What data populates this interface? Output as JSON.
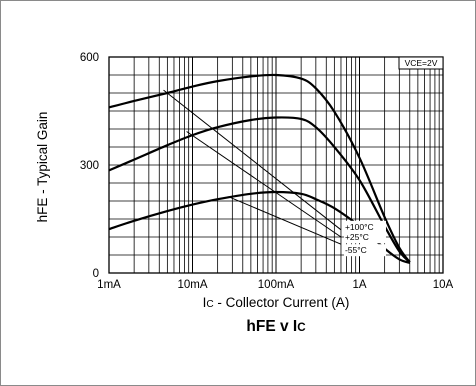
{
  "chart_data": {
    "type": "line",
    "title": "hFE v IC",
    "title_parts": [
      "hFE v I",
      "C"
    ],
    "xlabel": "IC - Collector Current (A)",
    "xlabel_parts": [
      "I",
      "C",
      " - Collector Current (A)"
    ],
    "ylabel": "hFE - Typical Gain",
    "xscale": "log",
    "xlim": [
      0.001,
      10
    ],
    "ylim": [
      0,
      600
    ],
    "x_ticks": [
      {
        "value": 0.001,
        "label": "1mA"
      },
      {
        "value": 0.01,
        "label": "10mA"
      },
      {
        "value": 0.1,
        "label": "100mA"
      },
      {
        "value": 1,
        "label": "1A"
      },
      {
        "value": 10,
        "label": "10A"
      }
    ],
    "y_ticks": [
      {
        "value": 0,
        "label": "0"
      },
      {
        "value": 300,
        "label": "300"
      },
      {
        "value": 600,
        "label": "600"
      }
    ],
    "grid": true,
    "condition_label": "VCE=2V",
    "series": [
      {
        "name": "+100°C",
        "x": [
          0.001,
          0.002,
          0.005,
          0.01,
          0.02,
          0.05,
          0.1,
          0.2,
          0.3,
          0.5,
          1,
          2,
          3,
          4
        ],
        "y": [
          460,
          478,
          500,
          518,
          533,
          546,
          550,
          540,
          513,
          448,
          320,
          155,
          70,
          30
        ]
      },
      {
        "name": "+25°C",
        "x": [
          0.001,
          0.002,
          0.005,
          0.01,
          0.02,
          0.05,
          0.1,
          0.2,
          0.3,
          0.5,
          1,
          2,
          3,
          4
        ],
        "y": [
          285,
          315,
          355,
          383,
          405,
          425,
          432,
          428,
          405,
          350,
          258,
          130,
          60,
          30
        ]
      },
      {
        "name": "-55°C",
        "x": [
          0.001,
          0.002,
          0.005,
          0.01,
          0.02,
          0.05,
          0.1,
          0.2,
          0.3,
          0.5,
          1,
          2,
          3,
          4
        ],
        "y": [
          122,
          145,
          172,
          190,
          205,
          220,
          225,
          220,
          205,
          180,
          130,
          68,
          38,
          28
        ]
      }
    ]
  }
}
